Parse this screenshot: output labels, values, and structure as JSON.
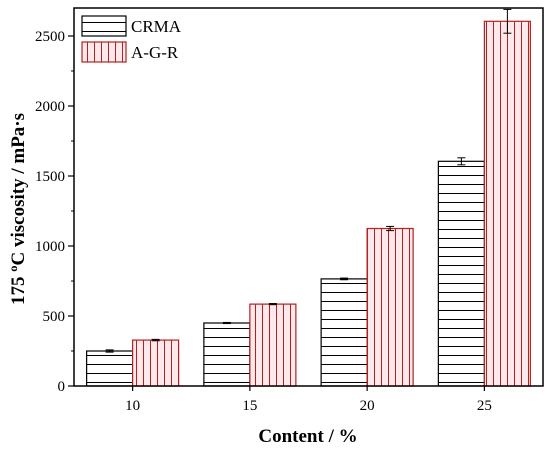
{
  "chart_data": {
    "type": "bar",
    "categories": [
      "10",
      "15",
      "20",
      "25"
    ],
    "series": [
      {
        "name": "CRMA",
        "values": [
          250,
          450,
          765,
          1605
        ],
        "errors": [
          8,
          4,
          6,
          25
        ],
        "pattern": "horizontal-lines",
        "color": "#000000",
        "fill": "#ffffff"
      },
      {
        "name": "A-G-R",
        "values": [
          328,
          585,
          1125,
          2605
        ],
        "errors": [
          5,
          4,
          15,
          85
        ],
        "pattern": "vertical-lines",
        "color": "#b22222",
        "fill": "#fde8ec"
      }
    ],
    "xlabel": "Content / %",
    "ylabel": "175 ºC viscosity / mPa·s",
    "ylim": [
      0,
      2700
    ],
    "yticks": [
      0,
      500,
      1000,
      1500,
      2000,
      2500
    ],
    "legend": "top-left",
    "grid": false
  }
}
